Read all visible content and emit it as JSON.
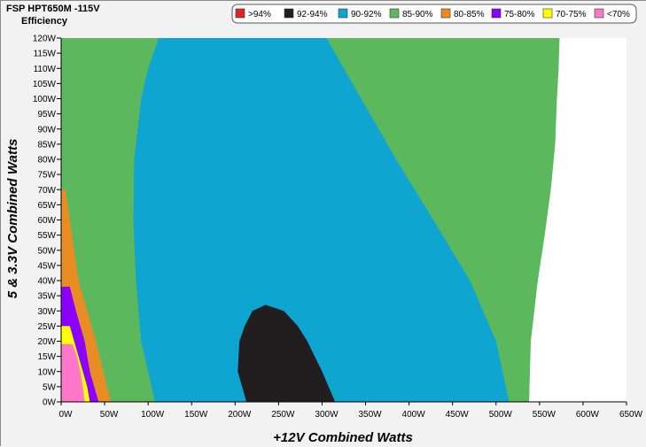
{
  "chart_data": {
    "type": "heatmap",
    "title": "FSP HPT650M -115V",
    "subtitle": "Efficiency",
    "xlabel": "+12V Combined Watts",
    "ylabel": "5 & 3.3V Combined Watts",
    "xlim": [
      0,
      650
    ],
    "ylim": [
      0,
      120
    ],
    "x_ticks": [
      "0W",
      "50W",
      "100W",
      "150W",
      "200W",
      "250W",
      "300W",
      "350W",
      "400W",
      "450W",
      "500W",
      "550W",
      "600W",
      "650W"
    ],
    "y_ticks": [
      "0W",
      "5W",
      "10W",
      "15W",
      "20W",
      "25W",
      "30W",
      "35W",
      "40W",
      "45W",
      "50W",
      "55W",
      "60W",
      "65W",
      "70W",
      "75W",
      "80W",
      "85W",
      "90W",
      "95W",
      "100W",
      "105W",
      "110W",
      "115W",
      "120W"
    ],
    "legend": [
      {
        "label": ">94%",
        "color": "#d9262b"
      },
      {
        "label": "92-94%",
        "color": "#221e1f"
      },
      {
        "label": "90-92%",
        "color": "#0fa5d1"
      },
      {
        "label": "85-90%",
        "color": "#5cb85c"
      },
      {
        "label": "80-85%",
        "color": "#e98c23"
      },
      {
        "label": "75-80%",
        "color": "#8b00ff"
      },
      {
        "label": "70-75%",
        "color": "#ffff00"
      },
      {
        "label": "<70%",
        "color": "#ff77c8"
      }
    ],
    "legend_placement": "top-right",
    "max_load_boundary": [
      [
        0,
        538
      ],
      [
        20,
        540
      ],
      [
        40,
        548
      ],
      [
        55,
        556
      ],
      [
        70,
        563
      ],
      [
        85,
        568
      ],
      [
        100,
        570
      ],
      [
        110,
        572
      ],
      [
        120,
        573
      ]
    ],
    "zones": [
      {
        "range": "85-90%",
        "outer_boundary": "max_load_boundary"
      },
      {
        "range": "90-92%",
        "boundary": [
          [
            0,
            108
          ],
          [
            20,
            92
          ],
          [
            40,
            86
          ],
          [
            60,
            83
          ],
          [
            80,
            84
          ],
          [
            100,
            92
          ],
          [
            110,
            100
          ],
          [
            120,
            112
          ],
          [
            120,
            305
          ],
          [
            110,
            325
          ],
          [
            100,
            345
          ],
          [
            80,
            385
          ],
          [
            60,
            428
          ],
          [
            40,
            470
          ],
          [
            20,
            500
          ],
          [
            0,
            515
          ]
        ]
      },
      {
        "range": "92-94%",
        "boundary": [
          [
            0,
            213
          ],
          [
            10,
            203
          ],
          [
            20,
            205
          ],
          [
            25,
            211
          ],
          [
            30,
            220
          ],
          [
            32,
            235
          ],
          [
            30,
            256
          ],
          [
            25,
            272
          ],
          [
            20,
            283
          ],
          [
            10,
            300
          ],
          [
            0,
            315
          ]
        ]
      },
      {
        "range": "80-85%",
        "boundary": [
          [
            0,
            57
          ],
          [
            20,
            40
          ],
          [
            40,
            20
          ],
          [
            60,
            10
          ],
          [
            70,
            5
          ],
          [
            70,
            0
          ],
          [
            0,
            0
          ]
        ]
      },
      {
        "range": "75-80%",
        "boundary": [
          [
            0,
            43
          ],
          [
            10,
            33
          ],
          [
            20,
            27
          ],
          [
            30,
            17
          ],
          [
            38,
            10
          ],
          [
            38,
            0
          ],
          [
            0,
            0
          ]
        ]
      },
      {
        "range": "70-75%",
        "boundary": [
          [
            0,
            33
          ],
          [
            5,
            30
          ],
          [
            10,
            25
          ],
          [
            20,
            15
          ],
          [
            25,
            10
          ],
          [
            25,
            0
          ],
          [
            0,
            0
          ]
        ]
      },
      {
        "range": "<70%",
        "boundary": [
          [
            0,
            27
          ],
          [
            5,
            25
          ],
          [
            10,
            22
          ],
          [
            15,
            18
          ],
          [
            19,
            13
          ],
          [
            19,
            0
          ],
          [
            0,
            0
          ]
        ]
      }
    ]
  }
}
